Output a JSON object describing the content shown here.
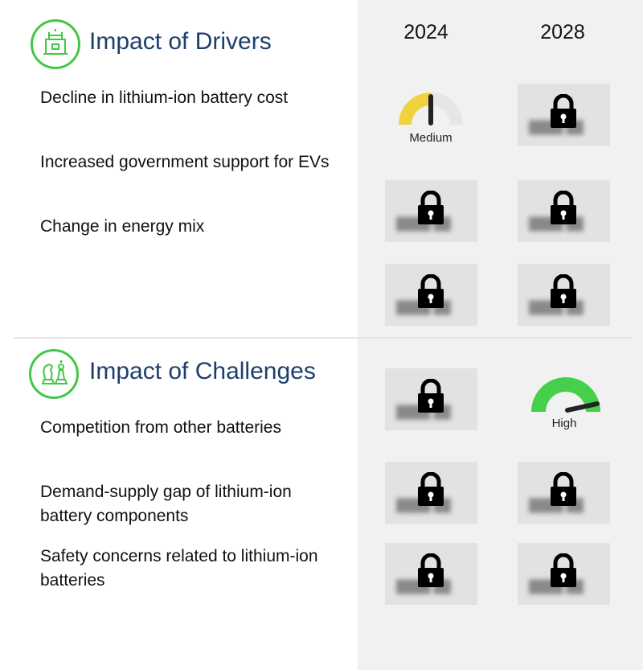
{
  "years": [
    "2024",
    "2028"
  ],
  "drivers": {
    "title": "Impact of Drivers",
    "icon": "factory-icon",
    "items": [
      "Decline in lithium-ion battery cost",
      "Increased government support for EVs",
      "Change in energy mix"
    ]
  },
  "challenges": {
    "title": "Impact of Challenges",
    "icon": "chess-icon",
    "items": [
      "Competition from other batteries",
      "Demand-supply gap of lithium-ion battery components",
      "Safety concerns related to lithium-ion batteries"
    ]
  },
  "ratings": {
    "driver_1_2024": "Medium",
    "challenge_1_2028": "High"
  },
  "colors": {
    "title": "#1e3f6c",
    "icon_ring": "#43c744",
    "medium": "#f0d33c",
    "high": "#46cf4a",
    "panel": "#f1f1f1"
  }
}
